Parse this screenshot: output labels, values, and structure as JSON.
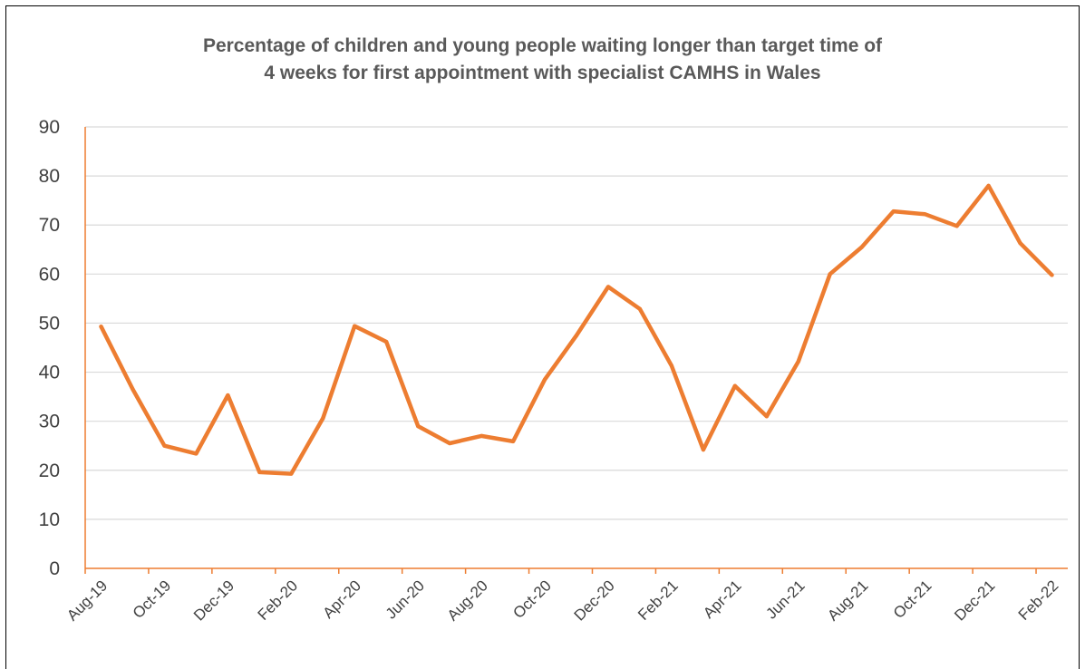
{
  "colors": {
    "line": "#ED7D31",
    "grid": "#D9D9D9",
    "axis": "#ED7D31",
    "text": "#404040",
    "title": "#595959"
  },
  "chart_data": {
    "type": "line",
    "title": [
      "Percentage of children and young people waiting longer than target time of",
      "4 weeks for first appointment with specialist CAMHS in Wales"
    ],
    "xlabel": "",
    "ylabel": "",
    "ylim": [
      0,
      90
    ],
    "yticks": [
      "0",
      "10",
      "20",
      "30",
      "40",
      "50",
      "60",
      "70",
      "80",
      "90"
    ],
    "xtick_labels": [
      "Aug-19",
      "Oct-19",
      "Dec-19",
      "Feb-20",
      "Apr-20",
      "Jun-20",
      "Aug-20",
      "Oct-20",
      "Dec-20",
      "Feb-21",
      "Apr-21",
      "Jun-21",
      "Aug-21",
      "Oct-21",
      "Dec-21",
      "Feb-22"
    ],
    "grid": true,
    "legend": "none",
    "categories": [
      "Aug-19",
      "Sep-19",
      "Oct-19",
      "Nov-19",
      "Dec-19",
      "Jan-20",
      "Feb-20",
      "Mar-20",
      "Apr-20",
      "May-20",
      "Jun-20",
      "Jul-20",
      "Aug-20",
      "Sep-20",
      "Oct-20",
      "Nov-20",
      "Dec-20",
      "Jan-21",
      "Feb-21",
      "Mar-21",
      "Apr-21",
      "May-21",
      "Jun-21",
      "Jul-21",
      "Aug-21",
      "Sep-21",
      "Oct-21",
      "Nov-21",
      "Dec-21",
      "Jan-22",
      "Feb-22"
    ],
    "series": [
      {
        "values": [
          49.3,
          36.5,
          25.0,
          23.4,
          35.3,
          19.6,
          19.3,
          30.6,
          49.4,
          46.2,
          29.0,
          25.5,
          27.0,
          25.9,
          38.5,
          47.5,
          57.4,
          52.9,
          41.3,
          24.2,
          37.2,
          31.0,
          42.2,
          60.0,
          65.5,
          72.8,
          72.2,
          69.8,
          78.0,
          66.3,
          59.8
        ]
      }
    ]
  }
}
